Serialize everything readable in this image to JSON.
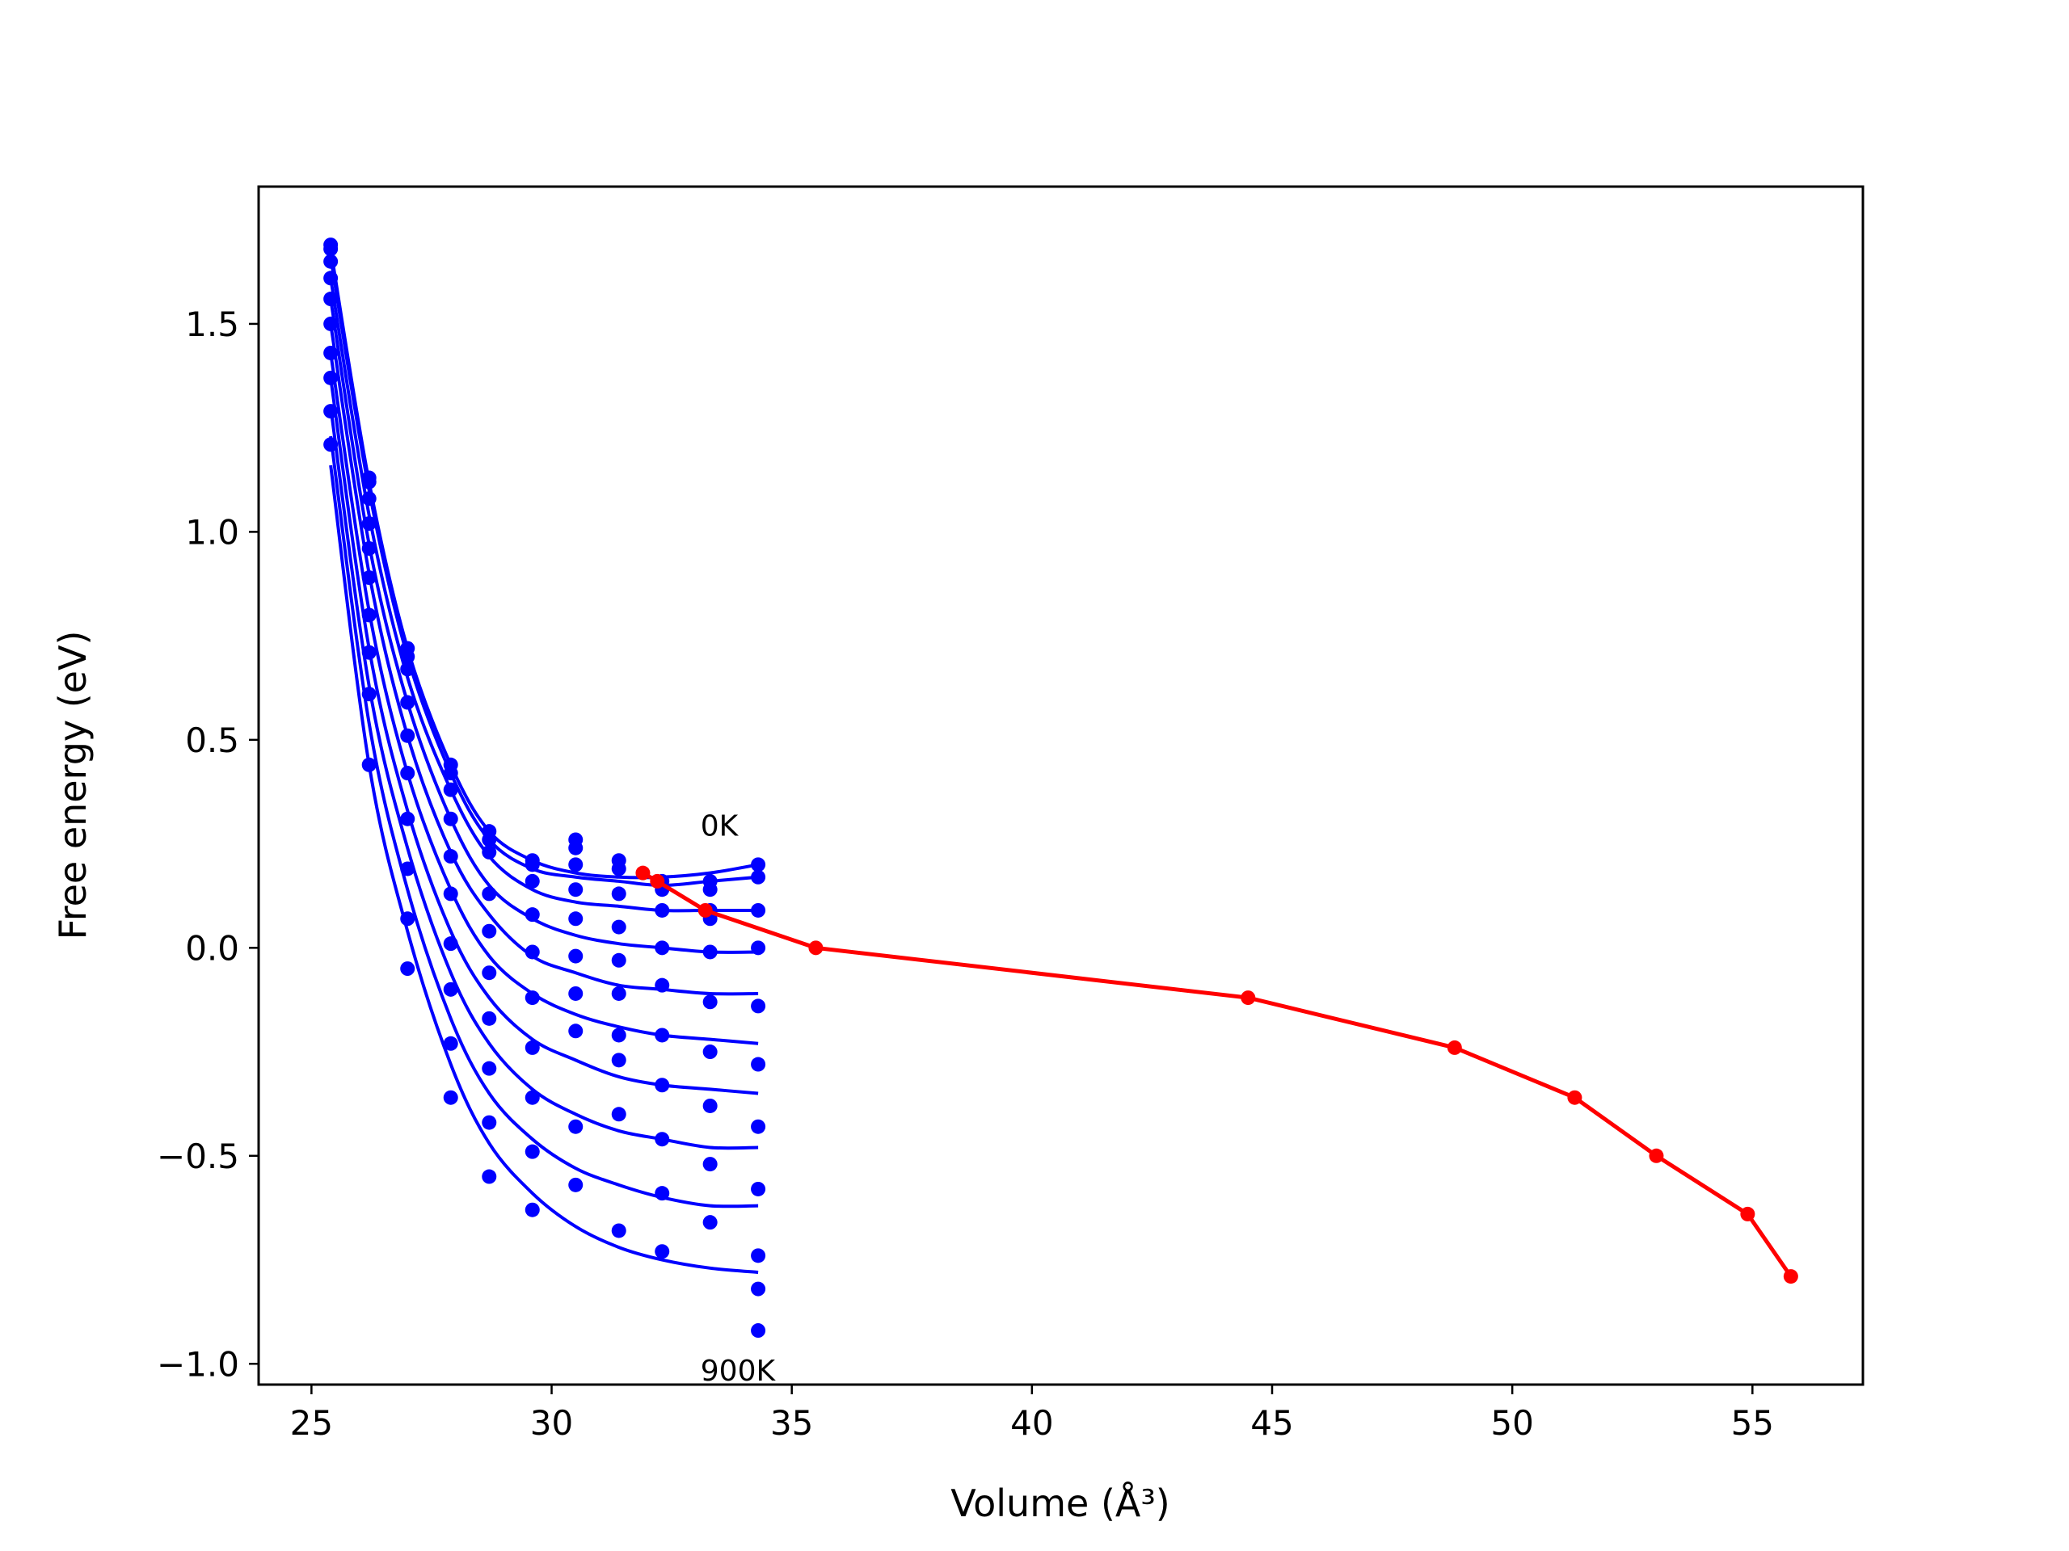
{
  "chart_data": {
    "type": "line",
    "xlabel": "Volume (Å³)",
    "ylabel": "Free energy (eV)",
    "xlim": [
      23.9,
      57.3
    ],
    "ylim": [
      -1.05,
      1.83
    ],
    "xticks": [
      25,
      30,
      35,
      40,
      45,
      50,
      55
    ],
    "xtick_labels": [
      "25",
      "30",
      "35",
      "40",
      "45",
      "50",
      "55"
    ],
    "yticks": [
      -1.0,
      -0.5,
      0.0,
      0.5,
      1.0,
      1.5
    ],
    "ytick_labels": [
      "−1.0",
      "−0.5",
      "0.0",
      "0.5",
      "1.0",
      "1.5"
    ],
    "grid": false,
    "annotations": [
      {
        "text": "0K",
        "x": 33.1,
        "y": 0.27
      },
      {
        "text": "900K",
        "x": 33.1,
        "y": -1.04
      }
    ],
    "colors": {
      "isotherms": "#0000ff",
      "minimum_path": "#ff0000"
    },
    "isotherm_volumes": [
      25.4,
      26.2,
      27.0,
      27.9,
      28.7,
      29.6,
      30.5,
      31.4,
      32.3,
      33.3,
      34.3
    ],
    "isotherms": [
      {
        "fit": [
          1.68,
          1.12,
          0.72,
          0.44,
          0.28,
          0.21,
          0.18,
          0.17,
          0.17,
          0.18,
          0.2
        ],
        "points": [
          1.69,
          1.13,
          0.72,
          0.44,
          0.28,
          0.21,
          0.26,
          0.21,
          0.16,
          0.16,
          0.2
        ]
      },
      {
        "fit": [
          1.66,
          1.1,
          0.7,
          0.42,
          0.26,
          0.19,
          0.17,
          0.16,
          0.15,
          0.16,
          0.17
        ],
        "points": [
          1.68,
          1.12,
          0.7,
          0.42,
          0.26,
          0.2,
          0.24,
          0.19,
          0.14,
          0.14,
          0.17
        ]
      },
      {
        "fit": [
          1.61,
          1.04,
          0.65,
          0.38,
          0.22,
          0.14,
          0.11,
          0.1,
          0.09,
          0.09,
          0.09
        ],
        "points": [
          1.65,
          1.08,
          0.67,
          0.38,
          0.23,
          0.16,
          0.2,
          0.13,
          0.09,
          0.09,
          0.09
        ]
      },
      {
        "fit": [
          1.56,
          0.97,
          0.59,
          0.31,
          0.15,
          0.07,
          0.03,
          0.01,
          0.0,
          -0.01,
          -0.01
        ],
        "points": [
          1.61,
          1.02,
          0.59,
          0.31,
          0.13,
          0.08,
          0.14,
          0.05,
          0.0,
          0.07,
          0.0
        ]
      },
      {
        "fit": [
          1.5,
          0.9,
          0.51,
          0.23,
          0.08,
          -0.02,
          -0.06,
          -0.09,
          -0.1,
          -0.11,
          -0.11
        ],
        "points": [
          1.56,
          0.96,
          0.51,
          0.22,
          0.04,
          -0.01,
          0.07,
          -0.03,
          -0.09,
          -0.01,
          -0.14
        ]
      },
      {
        "fit": [
          1.43,
          0.81,
          0.42,
          0.14,
          -0.02,
          -0.11,
          -0.16,
          -0.19,
          -0.21,
          -0.22,
          -0.23
        ],
        "points": [
          1.5,
          0.89,
          0.42,
          0.13,
          -0.06,
          -0.12,
          -0.02,
          -0.11,
          -0.21,
          -0.13,
          -0.28
        ]
      },
      {
        "fit": [
          1.37,
          0.72,
          0.33,
          0.04,
          -0.12,
          -0.22,
          -0.27,
          -0.31,
          -0.33,
          -0.34,
          -0.35
        ],
        "points": [
          1.43,
          0.8,
          0.31,
          0.01,
          -0.17,
          -0.24,
          -0.11,
          -0.21,
          -0.33,
          -0.25,
          -0.43
        ]
      },
      {
        "fit": [
          1.3,
          0.63,
          0.24,
          -0.06,
          -0.23,
          -0.34,
          -0.4,
          -0.44,
          -0.46,
          -0.48,
          -0.48
        ],
        "points": [
          1.37,
          0.71,
          0.19,
          -0.1,
          -0.29,
          -0.36,
          -0.2,
          -0.27,
          -0.46,
          -0.38,
          -0.58
        ]
      },
      {
        "fit": [
          1.23,
          0.54,
          0.14,
          -0.17,
          -0.35,
          -0.46,
          -0.53,
          -0.57,
          -0.6,
          -0.62,
          -0.62
        ],
        "points": [
          1.29,
          0.61,
          0.07,
          -0.23,
          -0.42,
          -0.49,
          -0.43,
          -0.4,
          -0.59,
          -0.52,
          -0.74
        ]
      },
      {
        "fit": [
          1.16,
          0.44,
          0.04,
          -0.28,
          -0.47,
          -0.59,
          -0.67,
          -0.72,
          -0.75,
          -0.77,
          -0.78
        ],
        "points": [
          1.21,
          0.44,
          -0.05,
          -0.36,
          -0.55,
          -0.63,
          -0.57,
          -0.68,
          -0.73,
          -0.66,
          -0.92
        ]
      }
    ],
    "extra_points": [
      {
        "x": 34.3,
        "y": -0.82
      }
    ],
    "minimum_path": {
      "x": [
        31.9,
        32.2,
        33.2,
        35.5,
        44.5,
        48.8,
        51.3,
        53.0,
        54.9,
        55.8
      ],
      "y": [
        0.18,
        0.16,
        0.09,
        0.0,
        -0.12,
        -0.24,
        -0.36,
        -0.5,
        -0.64,
        -0.79
      ]
    }
  }
}
